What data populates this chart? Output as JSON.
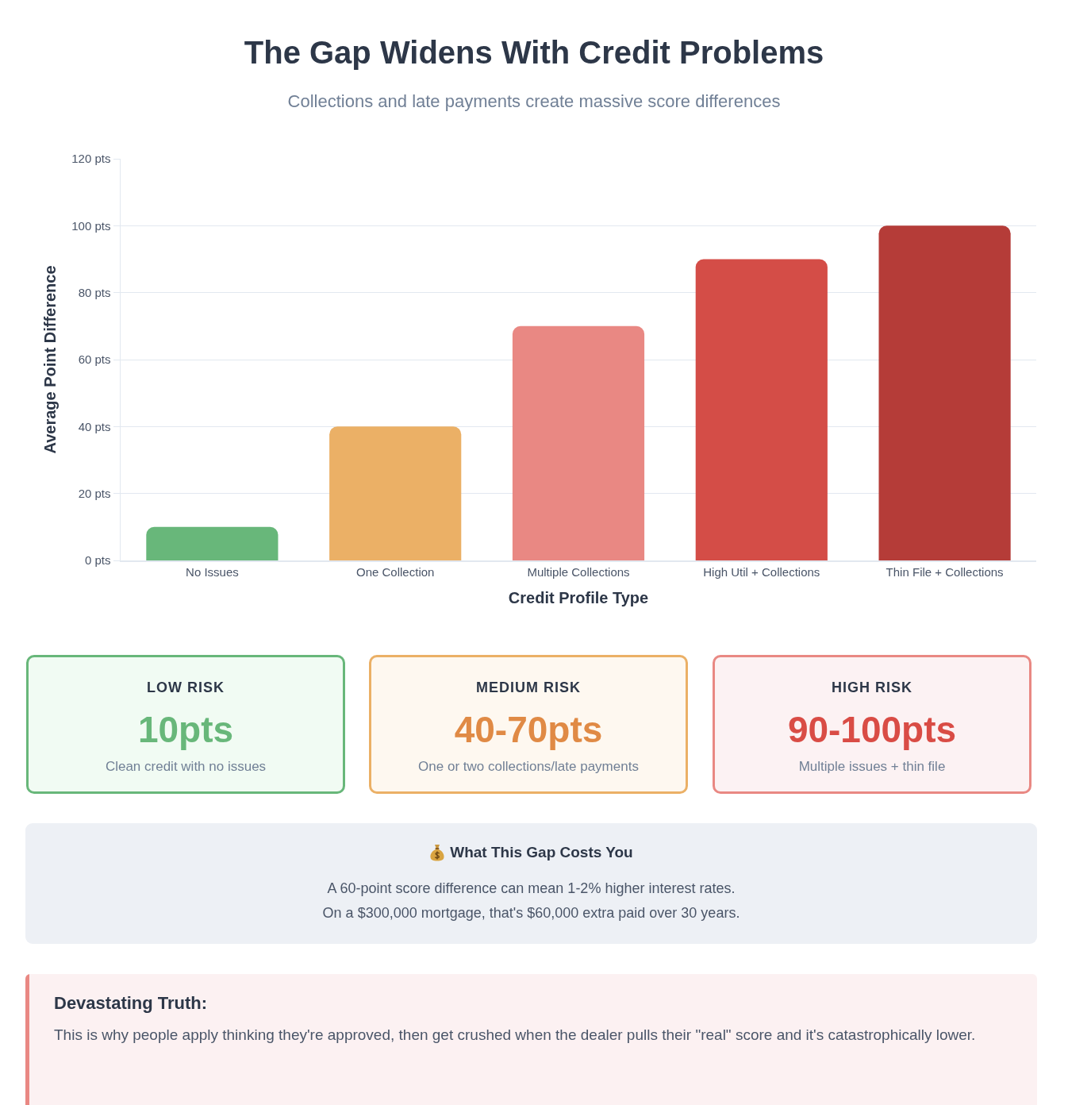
{
  "chart_data": {
    "type": "bar",
    "title": "The Gap Widens With Credit Problems",
    "subtitle": "Collections and late payments create massive score differences",
    "xlabel": "Credit Profile Type",
    "ylabel": "Average Point Difference",
    "categories": [
      "No Issues",
      "One Collection",
      "Multiple Collections",
      "High Util + Collections",
      "Thin File + Collections"
    ],
    "values": [
      10,
      40,
      70,
      90,
      100
    ],
    "colors": [
      "#68b77a",
      "#ebb066",
      "#e98883",
      "#d44d47",
      "#b53c38"
    ],
    "ylim": [
      0,
      120
    ],
    "yticks": [
      {
        "value": 0,
        "label": "0 pts"
      },
      {
        "value": 20,
        "label": "20 pts"
      },
      {
        "value": 40,
        "label": "40 pts"
      },
      {
        "value": 60,
        "label": "60 pts"
      },
      {
        "value": 80,
        "label": "80 pts"
      },
      {
        "value": 100,
        "label": "100 pts"
      },
      {
        "value": 120,
        "label": "120 pts"
      }
    ],
    "grid": "y",
    "annotations": [
      "LOW RISK",
      "10pts",
      "Clean credit with no issues",
      "MEDIUM RISK",
      "40-70pts",
      "One or two collections/late payments",
      "HIGH RISK",
      "90-100pts",
      "Multiple issues + thin file",
      "What This Gap Costs You",
      "A 60-point score difference can mean 1-2% higher interest rates.",
      "On a $300,000 mortgage, that's $60,000 extra paid over 30 years.",
      "Devastating Truth:",
      "This is why people apply thinking they're approved, then get crushed when the dealer pulls their \"real\" score and it's catastrophically lower."
    ]
  }
}
